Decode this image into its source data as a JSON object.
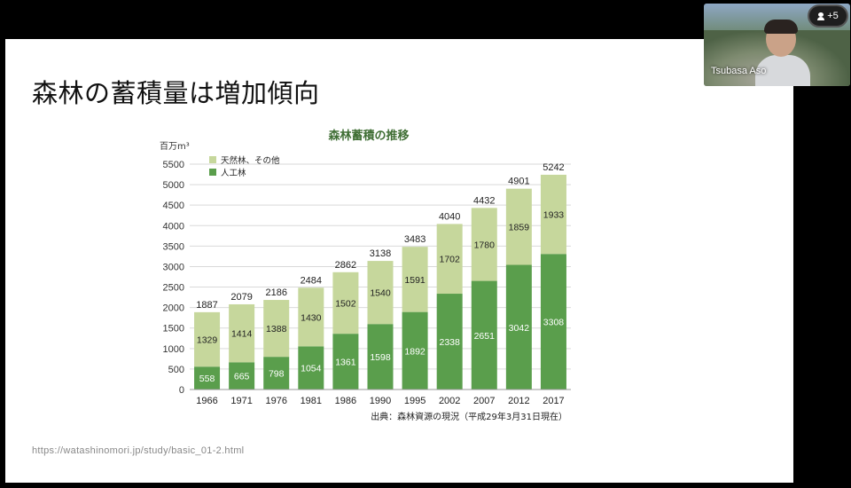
{
  "slide": {
    "title": "森林の蓄積量は増加傾向",
    "source_url": "https://watashinomori.jp/study/basic_01-2.html"
  },
  "video": {
    "participant_name": "Tsubasa Aso",
    "extra_participants": "+5"
  },
  "chart_data": {
    "type": "bar",
    "stacked": true,
    "title": "森林蓄積の推移",
    "ylabel": "百万m³",
    "ylim": [
      0,
      5500
    ],
    "yticks": [
      0,
      500,
      1000,
      1500,
      2000,
      2500,
      3000,
      3500,
      4000,
      4500,
      5000,
      5500
    ],
    "grid": true,
    "legend_position": "top-left",
    "categories": [
      "1966",
      "1971",
      "1976",
      "1981",
      "1986",
      "1990",
      "1995",
      "2002",
      "2007",
      "2012",
      "2017"
    ],
    "series": [
      {
        "name": "人工林",
        "color": "#5a9e4c",
        "values": [
          558,
          665,
          798,
          1054,
          1361,
          1598,
          1892,
          2338,
          2651,
          3042,
          3308
        ]
      },
      {
        "name": "天然林、その他",
        "color": "#c6d79c",
        "values": [
          1329,
          1414,
          1388,
          1430,
          1502,
          1540,
          1591,
          1702,
          1780,
          1859,
          1933
        ]
      }
    ],
    "totals": [
      1887,
      2079,
      2186,
      2484,
      2862,
      3138,
      3483,
      4040,
      4432,
      4901,
      5242
    ],
    "source_note": "出典：森林資源の現況（平成29年3月31日現在）"
  }
}
